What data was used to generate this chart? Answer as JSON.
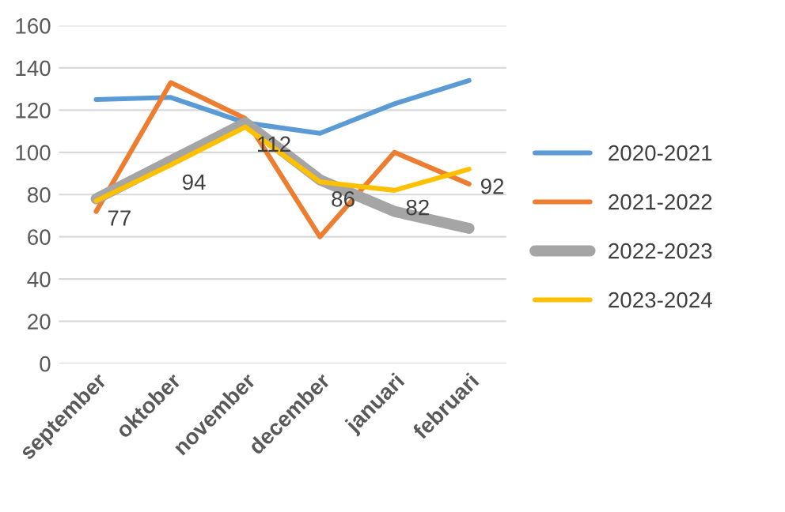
{
  "chart_data": {
    "type": "line",
    "categories": [
      "september",
      "oktober",
      "november",
      "december",
      "januari",
      "februari"
    ],
    "ylim": [
      0,
      160
    ],
    "yticks": [
      0,
      20,
      40,
      60,
      80,
      100,
      120,
      140,
      160
    ],
    "grid": "y",
    "legend": "right",
    "marker": "none",
    "line_style": "solid",
    "series": [
      {
        "name": "2020-2021",
        "color": "#5b9bd5",
        "values": [
          125,
          126,
          114,
          109,
          123,
          134
        ]
      },
      {
        "name": "2021-2022",
        "color": "#ed7d31",
        "values": [
          72,
          133,
          116,
          60,
          100,
          85
        ]
      },
      {
        "name": "2022-2023",
        "color": "#a5a5a5",
        "values": [
          78,
          96,
          114,
          87,
          72,
          64
        ]
      },
      {
        "name": "2023-2024",
        "color": "#ffc000",
        "values": [
          77,
          94,
          112,
          86,
          82,
          92
        ],
        "value_labels": [
          "77",
          "94",
          "112",
          "86",
          "82",
          "92"
        ]
      }
    ]
  }
}
